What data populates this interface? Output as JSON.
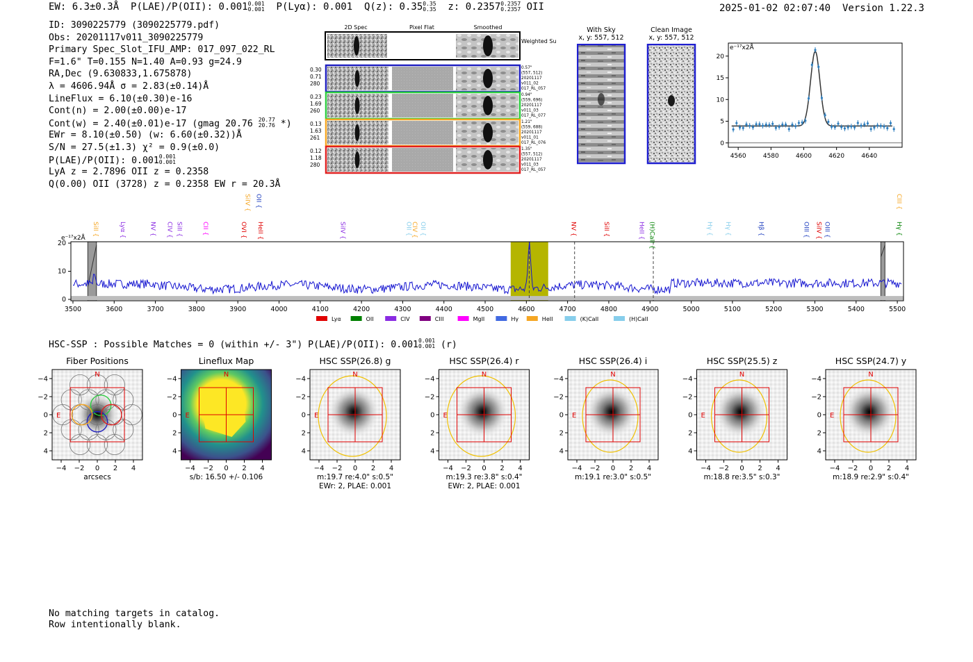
{
  "header": {
    "left": "EW: 6.3±0.3Å  P(LAE)/P(OII): 0.001₀.₀₀₁  P(Lyα): 0.001  Q(z): 0.35 ⁰·³⁵  z: 0.2357 ⁰·²³⁵⁷  OII",
    "ew": "EW: 6.3±0.3Å",
    "plae": "P(LAE)/P(OII): 0.001",
    "plae_sup": "0.001",
    "plae_sub": "0.001",
    "plya": "P(Lyα): 0.001",
    "qz": "Q(z): 0.35",
    "qz_sup": "0.35",
    "qz_sub": "0.35",
    "z": "z: 0.2357",
    "z_sup": "0.2357",
    "z_sub": "0.2357",
    "line": "OII",
    "datetime": "2025-01-02 02:07:40",
    "version": "Version 1.22.3"
  },
  "info": {
    "id": "ID: 3090225779 (3090225779.pdf)",
    "obs": "Obs: 20201117v011_3090225779",
    "primary": "Primary Spec_Slot_IFU_AMP: 017_097_022_RL",
    "fit": "F=1.6\"  T=0.155  N=1.40  A=0.93  g=24.9",
    "radec": "RA,Dec (9.630833,1.675878)",
    "lambda": "λ = 4606.94Å  σ = 2.83(±0.14)Å",
    "lineflux": "LineFlux = 6.10(±0.30)e-16",
    "contn": "Cont(n) = 2.00(±0.00)e-17",
    "contw": "Cont(w) = 2.40(±0.01)e-17 (gmag 20.76",
    "contw_sup": "20.77",
    "contw_sub": "20.76",
    "contw_end": "*)",
    "ewr": "EWr = 8.10(±0.50) (w: 6.60(±0.32))Å",
    "sn": "S/N = 27.5(±1.3)  χ² = 0.9(±0.0)",
    "plae": "P(LAE)/P(OII): 0.001",
    "plae_sup": "0.001",
    "plae_sub": "0.001",
    "lya": "LyA z = 2.7896  OII z = 0.2358",
    "q": "Q(0.00) OII (3728) z = 0.2358  EW r = 20.3Å"
  },
  "cutouts": {
    "col_titles": [
      "2D Spec",
      "Pixel Flat",
      "Smoothed"
    ],
    "weighted_sum": "Weighted Sum",
    "rows": [
      {
        "left": [
          "0.30",
          "0.71",
          "280"
        ],
        "right": [
          "0.57\"",
          "(557, 512)",
          "20201117",
          "v011_02",
          "017_RL_057"
        ],
        "color": "#1f1fbf"
      },
      {
        "left": [
          "0.23",
          "1.69",
          "260"
        ],
        "right": [
          "0.94\"",
          "(559, 696)",
          "20201117",
          "v011_03",
          "017_RL_077"
        ],
        "color": "#2ecc40"
      },
      {
        "left": [
          "0.13",
          "1.63",
          "261"
        ],
        "right": [
          "1.21\"",
          "(559, 688)",
          "20201117",
          "v011_01",
          "017_RL_076"
        ],
        "color": "#f5a623"
      },
      {
        "left": [
          "0.12",
          "1.18",
          "280"
        ],
        "right": [
          "1.35\"",
          "(557, 512)",
          "20201117",
          "v011_03",
          "017_RL_057"
        ],
        "color": "#e02020"
      }
    ]
  },
  "sky": {
    "with_sky_title": "With Sky",
    "with_sky_sub": "x, y: 557, 512",
    "clean_title": "Clean Image",
    "clean_sub": "x, y: 557, 512"
  },
  "zoom_chart": {
    "type": "scatter",
    "ylabel": "e⁻¹⁷x2Å",
    "xticks": [
      "4560",
      "4580",
      "4600",
      "4620",
      "4640"
    ],
    "yticks": [
      "0",
      "5",
      "10",
      "15",
      "20"
    ],
    "xlim": [
      4554,
      4660
    ],
    "ylim": [
      -1,
      23
    ]
  },
  "full_spec": {
    "ylabel": "e⁻¹⁷x2Å",
    "xticks": [
      "3500",
      "3600",
      "3700",
      "3800",
      "3900",
      "4000",
      "4100",
      "4200",
      "4300",
      "4400",
      "4500",
      "4600",
      "4700",
      "4800",
      "4900",
      "5000",
      "5100",
      "5200",
      "5300",
      "5400",
      "5500"
    ],
    "yticks": [
      "0",
      "10",
      "20"
    ],
    "line_labels": [
      {
        "label": "SiII",
        "w": 3551,
        "color": "#f5a623",
        "row": 1
      },
      {
        "label": "Lyα",
        "w": 3616,
        "color": "#8a2be2",
        "row": 1
      },
      {
        "label": "NV",
        "w": 3690,
        "color": "#8a2be2",
        "row": 1
      },
      {
        "label": "CIV",
        "w": 3730,
        "color": "#8a2be2",
        "row": 1
      },
      {
        "label": "SiII",
        "w": 3754,
        "color": "#8a2be2",
        "row": 1
      },
      {
        "label": "CII",
        "w": 3817,
        "color": "#ff00ff",
        "row": 1
      },
      {
        "label": "OVI",
        "w": 3910,
        "color": "#e00000",
        "row": 1
      },
      {
        "label": "SiIV",
        "w": 3919,
        "color": "#f5a623",
        "row": 2
      },
      {
        "label": "OII",
        "w": 3946,
        "color": "#1f3fbf",
        "row": 2
      },
      {
        "label": "HeII",
        "w": 3950,
        "color": "#e00000",
        "row": 1
      },
      {
        "label": "SiIV",
        "w": 4150,
        "color": "#8a2be2",
        "row": 1
      },
      {
        "label": "OII",
        "w": 4310,
        "color": "#87ceeb",
        "row": 1
      },
      {
        "label": "CIV",
        "w": 4325,
        "color": "#f5a623",
        "row": 1
      },
      {
        "label": "OII",
        "w": 4345,
        "color": "#87ceeb",
        "row": 1
      },
      {
        "label": "NV",
        "w": 4710,
        "color": "#e00000",
        "row": 1
      },
      {
        "label": "SiII",
        "w": 4790,
        "color": "#e00000",
        "row": 1
      },
      {
        "label": "HeII",
        "w": 4875,
        "color": "#8a2be2",
        "row": 1
      },
      {
        "label": "(H)CaII",
        "w": 4900,
        "color": "#008000",
        "row": 1
      },
      {
        "label": "Hγ",
        "w": 5040,
        "color": "#87ceeb",
        "row": 1
      },
      {
        "label": "Hγ",
        "w": 5085,
        "color": "#87ceeb",
        "row": 1
      },
      {
        "label": "Hβ",
        "w": 5165,
        "color": "#1f3fbf",
        "row": 1
      },
      {
        "label": "OIII",
        "w": 5275,
        "color": "#1f3fbf",
        "row": 1
      },
      {
        "label": "SiIV",
        "w": 5305,
        "color": "#e00000",
        "row": 1
      },
      {
        "label": "OIII",
        "w": 5325,
        "color": "#1f3fbf",
        "row": 1
      },
      {
        "label": "CIII",
        "w": 5500,
        "color": "#f5a623",
        "row": 2
      },
      {
        "label": "Hγ",
        "w": 5500,
        "color": "#008000",
        "row": 1
      }
    ],
    "legend": [
      {
        "label": "Lyα",
        "color": "#e00000"
      },
      {
        "label": "OII",
        "color": "#008000"
      },
      {
        "label": "CIV",
        "color": "#8a2be2"
      },
      {
        "label": "CIII",
        "color": "#800080"
      },
      {
        "label": "MgII",
        "color": "#ff00ff"
      },
      {
        "label": "Hγ",
        "color": "#4169e1"
      },
      {
        "label": "HeII",
        "color": "#f5a623"
      },
      {
        "label": "(K)CaII",
        "color": "#87ceeb"
      },
      {
        "label": "(H)CaII",
        "color": "#87ceeb"
      }
    ]
  },
  "hsc": {
    "line": "HSC-SSP : Possible Matches = 0 (within +/- 3\")  P(LAE)/P(OII): 0.001",
    "line_sup": "0.001",
    "line_sub": "0.001",
    "line_end": "(r)",
    "ticks": [
      "−4",
      "−2",
      "0",
      "2",
      "4"
    ],
    "north": "N",
    "east": "E",
    "panels": [
      {
        "title": "Fiber Positions",
        "caption1": "arcsecs",
        "caption2": ""
      },
      {
        "title": "Lineflux Map",
        "caption1": "s/b: 16.50 +/- 0.106",
        "caption2": ""
      },
      {
        "title": "HSC SSP(26.8) g",
        "caption1": "m:19.7  re:4.0\"  s:0.5\"",
        "caption2": "EWr: 2, PLAE: 0.001"
      },
      {
        "title": "HSC SSP(26.4) r",
        "caption1": "m:19.3  re:3.8\"  s:0.4\"",
        "caption2": "EWr: 2, PLAE: 0.001"
      },
      {
        "title": "HSC SSP(26.4) i",
        "caption1": "m:19.1  re:3.0\"  s:0.5\"",
        "caption2": ""
      },
      {
        "title": "HSC SSP(25.5) z",
        "caption1": "m:18.8  re:3.5\"  s:0.3\"",
        "caption2": ""
      },
      {
        "title": "HSC SSP(24.7) y",
        "caption1": "m:18.9  re:2.9\"  s:0.4\"",
        "caption2": ""
      }
    ]
  },
  "footer": {
    "line1": "No matching targets in catalog.",
    "line2": "Row intentionally blank."
  }
}
